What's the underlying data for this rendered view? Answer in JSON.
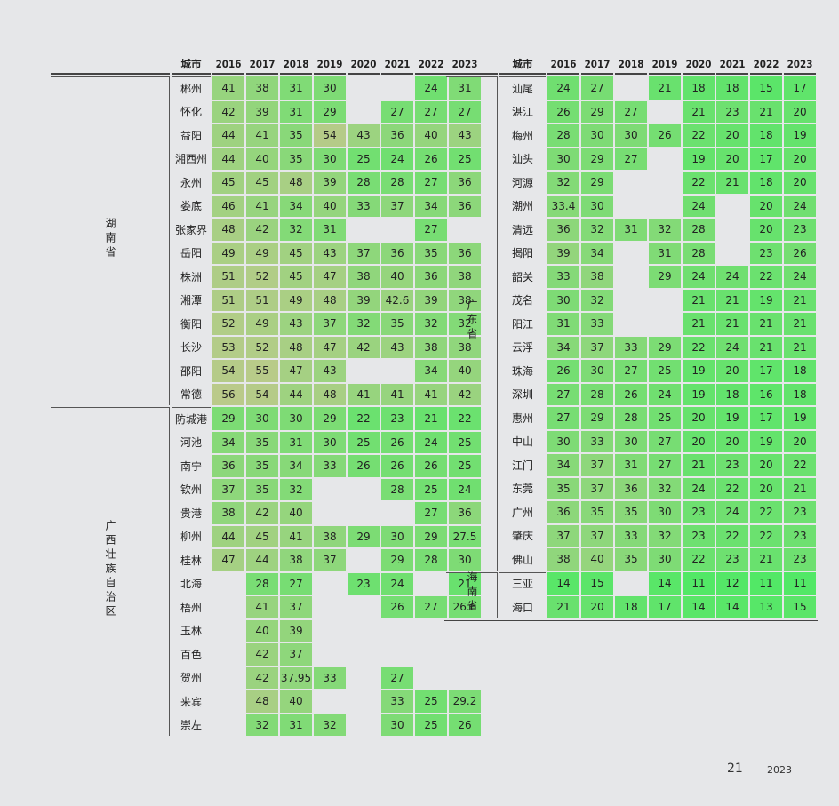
{
  "years": [
    "2016",
    "2017",
    "2018",
    "2019",
    "2020",
    "2021",
    "2022",
    "2023"
  ],
  "city_header": "城市",
  "left_table": {
    "groups": [
      {
        "province": "湖南省",
        "rows": [
          {
            "city": "郴州",
            "values": [
              "41",
              "38",
              "31",
              "30",
              "",
              "",
              "24",
              "31"
            ]
          },
          {
            "city": "怀化",
            "values": [
              "42",
              "39",
              "31",
              "29",
              "",
              "27",
              "27",
              "27"
            ]
          },
          {
            "city": "益阳",
            "values": [
              "44",
              "41",
              "35",
              "54",
              "43",
              "36",
              "40",
              "43"
            ]
          },
          {
            "city": "湘西州",
            "values": [
              "44",
              "40",
              "35",
              "30",
              "25",
              "24",
              "26",
              "25"
            ]
          },
          {
            "city": "永州",
            "values": [
              "45",
              "45",
              "48",
              "39",
              "28",
              "28",
              "27",
              "36"
            ]
          },
          {
            "city": "娄底",
            "values": [
              "46",
              "41",
              "34",
              "40",
              "33",
              "37",
              "34",
              "36"
            ]
          },
          {
            "city": "张家界",
            "values": [
              "48",
              "42",
              "32",
              "31",
              "",
              "",
              "27",
              ""
            ]
          },
          {
            "city": "岳阳",
            "values": [
              "49",
              "49",
              "45",
              "43",
              "37",
              "36",
              "35",
              "36"
            ]
          },
          {
            "city": "株洲",
            "values": [
              "51",
              "52",
              "45",
              "47",
              "38",
              "40",
              "36",
              "38"
            ]
          },
          {
            "city": "湘潭",
            "values": [
              "51",
              "51",
              "49",
              "48",
              "39",
              "42.6",
              "39",
              "38"
            ]
          },
          {
            "city": "衡阳",
            "values": [
              "52",
              "49",
              "43",
              "37",
              "32",
              "35",
              "32",
              "32"
            ]
          },
          {
            "city": "长沙",
            "values": [
              "53",
              "52",
              "48",
              "47",
              "42",
              "43",
              "38",
              "38"
            ]
          },
          {
            "city": "邵阳",
            "values": [
              "54",
              "55",
              "47",
              "43",
              "",
              "",
              "34",
              "40"
            ]
          },
          {
            "city": "常德",
            "values": [
              "56",
              "54",
              "44",
              "48",
              "41",
              "41",
              "41",
              "42"
            ]
          }
        ]
      },
      {
        "province": "广西壮族自治区",
        "rows": [
          {
            "city": "防城港",
            "values": [
              "29",
              "30",
              "30",
              "29",
              "22",
              "23",
              "21",
              "22"
            ]
          },
          {
            "city": "河池",
            "values": [
              "34",
              "35",
              "31",
              "30",
              "25",
              "26",
              "24",
              "25"
            ]
          },
          {
            "city": "南宁",
            "values": [
              "36",
              "35",
              "34",
              "33",
              "26",
              "26",
              "26",
              "25"
            ]
          },
          {
            "city": "钦州",
            "values": [
              "37",
              "35",
              "32",
              "",
              "",
              "28",
              "25",
              "24"
            ]
          },
          {
            "city": "贵港",
            "values": [
              "38",
              "42",
              "40",
              "",
              "",
              "",
              "27",
              "36"
            ]
          },
          {
            "city": "柳州",
            "values": [
              "44",
              "45",
              "41",
              "38",
              "29",
              "30",
              "29",
              "27.5"
            ]
          },
          {
            "city": "桂林",
            "values": [
              "47",
              "44",
              "38",
              "37",
              "",
              "29",
              "28",
              "30"
            ]
          },
          {
            "city": "北海",
            "values": [
              "",
              "28",
              "27",
              "",
              "23",
              "24",
              "",
              "21"
            ]
          },
          {
            "city": "梧州",
            "values": [
              "",
              "41",
              "37",
              "",
              "",
              "26",
              "27",
              "26.6"
            ]
          },
          {
            "city": "玉林",
            "values": [
              "",
              "40",
              "39",
              "",
              "",
              "",
              "",
              ""
            ]
          },
          {
            "city": "百色",
            "values": [
              "",
              "42",
              "37",
              "",
              "",
              "",
              "",
              ""
            ]
          },
          {
            "city": "贺州",
            "values": [
              "",
              "42",
              "37.95",
              "33",
              "",
              "27",
              "",
              ""
            ]
          },
          {
            "city": "来宾",
            "values": [
              "",
              "48",
              "40",
              "",
              "",
              "33",
              "25",
              "29.2"
            ]
          },
          {
            "city": "崇左",
            "values": [
              "",
              "32",
              "31",
              "32",
              "",
              "30",
              "25",
              "26"
            ]
          }
        ]
      }
    ]
  },
  "right_table": {
    "groups": [
      {
        "province": "广东省",
        "rows": [
          {
            "city": "汕尾",
            "values": [
              "24",
              "27",
              "",
              "21",
              "18",
              "18",
              "15",
              "17"
            ]
          },
          {
            "city": "湛江",
            "values": [
              "26",
              "29",
              "27",
              "",
              "21",
              "23",
              "21",
              "20"
            ]
          },
          {
            "city": "梅州",
            "values": [
              "28",
              "30",
              "30",
              "26",
              "22",
              "20",
              "18",
              "19"
            ]
          },
          {
            "city": "汕头",
            "values": [
              "30",
              "29",
              "27",
              "",
              "19",
              "20",
              "17",
              "20"
            ]
          },
          {
            "city": "河源",
            "values": [
              "32",
              "29",
              "",
              "",
              "22",
              "21",
              "18",
              "20"
            ]
          },
          {
            "city": "潮州",
            "values": [
              "33.4",
              "30",
              "",
              "",
              "24",
              "",
              "20",
              "24"
            ]
          },
          {
            "city": "清远",
            "values": [
              "36",
              "32",
              "31",
              "32",
              "28",
              "",
              "20",
              "23"
            ]
          },
          {
            "city": "揭阳",
            "values": [
              "39",
              "34",
              "",
              "31",
              "28",
              "",
              "23",
              "26"
            ]
          },
          {
            "city": "韶关",
            "values": [
              "33",
              "38",
              "",
              "29",
              "24",
              "24",
              "22",
              "24"
            ]
          },
          {
            "city": "茂名",
            "values": [
              "30",
              "32",
              "",
              "",
              "21",
              "21",
              "19",
              "21"
            ]
          },
          {
            "city": "阳江",
            "values": [
              "31",
              "33",
              "",
              "",
              "21",
              "21",
              "21",
              "21"
            ]
          },
          {
            "city": "云浮",
            "values": [
              "34",
              "37",
              "33",
              "29",
              "22",
              "24",
              "21",
              "21"
            ]
          },
          {
            "city": "珠海",
            "values": [
              "26",
              "30",
              "27",
              "25",
              "19",
              "20",
              "17",
              "18"
            ]
          },
          {
            "city": "深圳",
            "values": [
              "27",
              "28",
              "26",
              "24",
              "19",
              "18",
              "16",
              "18"
            ]
          },
          {
            "city": "惠州",
            "values": [
              "27",
              "29",
              "28",
              "25",
              "20",
              "19",
              "17",
              "19"
            ]
          },
          {
            "city": "中山",
            "values": [
              "30",
              "33",
              "30",
              "27",
              "20",
              "20",
              "19",
              "20"
            ]
          },
          {
            "city": "江门",
            "values": [
              "34",
              "37",
              "31",
              "27",
              "21",
              "23",
              "20",
              "22"
            ]
          },
          {
            "city": "东莞",
            "values": [
              "35",
              "37",
              "36",
              "32",
              "24",
              "22",
              "20",
              "21"
            ]
          },
          {
            "city": "广州",
            "values": [
              "36",
              "35",
              "35",
              "30",
              "23",
              "24",
              "22",
              "23"
            ]
          },
          {
            "city": "肇庆",
            "values": [
              "37",
              "37",
              "33",
              "32",
              "23",
              "22",
              "22",
              "23"
            ]
          },
          {
            "city": "佛山",
            "values": [
              "38",
              "40",
              "35",
              "30",
              "22",
              "23",
              "21",
              "23"
            ]
          }
        ]
      },
      {
        "province": "海南省",
        "rows": [
          {
            "city": "三亚",
            "values": [
              "14",
              "15",
              "",
              "14",
              "11",
              "12",
              "11",
              "11"
            ]
          },
          {
            "city": "海口",
            "values": [
              "21",
              "20",
              "18",
              "17",
              "14",
              "14",
              "13",
              "15"
            ]
          }
        ]
      }
    ]
  },
  "footer": {
    "page_number": "21",
    "year": "2023"
  }
}
